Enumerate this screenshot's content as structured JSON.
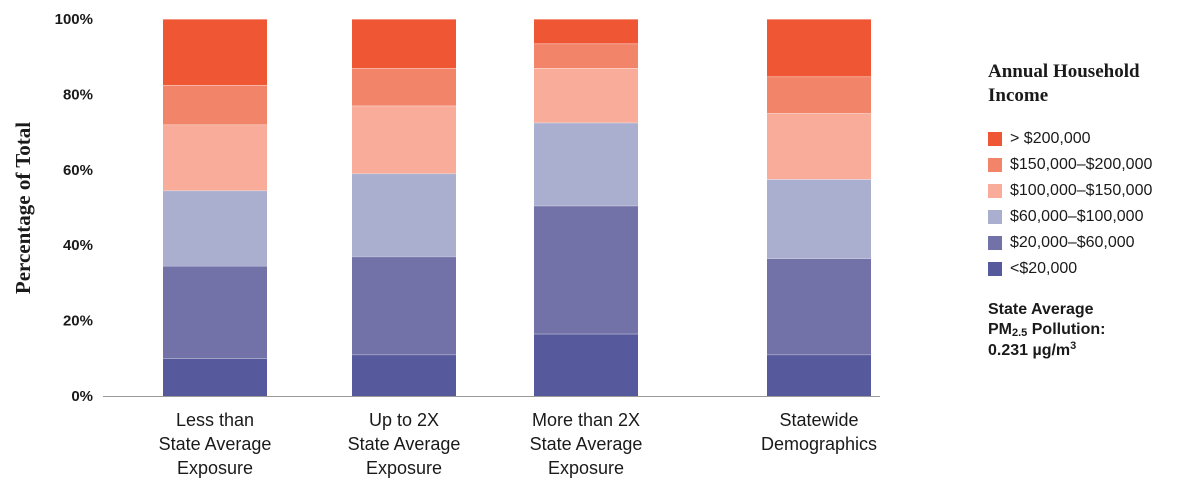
{
  "chart_data": {
    "type": "bar",
    "stacked": true,
    "ylabel": "Percentage of Total",
    "ylim": [
      0,
      100
    ],
    "yticks": [
      "0%",
      "20%",
      "40%",
      "60%",
      "80%",
      "100%"
    ],
    "categories": [
      [
        "Less than",
        "State Average",
        "Exposure"
      ],
      [
        "Up to 2X",
        "State Average",
        "Exposure"
      ],
      [
        "More than 2X",
        "State Average",
        "Exposure"
      ],
      [
        "Statewide",
        "Demographics"
      ]
    ],
    "series": [
      {
        "name": "<$20,000",
        "color": "#565a9c",
        "values": [
          10,
          11,
          16.5,
          11
        ]
      },
      {
        "name": "$20,000–$60,000",
        "color": "#7272a8",
        "values": [
          24.5,
          26,
          34,
          25.5
        ]
      },
      {
        "name": "$60,000–$100,000",
        "color": "#aaaecf",
        "values": [
          20,
          22,
          22,
          21
        ]
      },
      {
        "name": "$100,000–$150,000",
        "color": "#f8ac99",
        "values": [
          17.5,
          18,
          14.5,
          17.5
        ]
      },
      {
        "name": "$150,000–$200,000",
        "color": "#f2846a",
        "values": [
          10.5,
          10,
          6.5,
          9.75
        ]
      },
      {
        "name": "> $200,000",
        "color": "#ee5634",
        "values": [
          17.5,
          13,
          6.5,
          15.25
        ]
      }
    ]
  },
  "legend": {
    "title": "Annual Household Income"
  },
  "note": {
    "line1": "State Average",
    "pm": "PM",
    "sub": "2.5",
    "pollution": " Pollution:",
    "value": "0.231 µg/m",
    "sup": "3"
  }
}
